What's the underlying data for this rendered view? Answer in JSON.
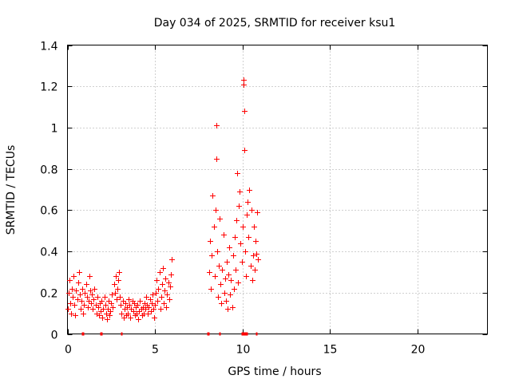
{
  "chart_data": {
    "type": "scatter",
    "title": "Day 034 of 2025, SRMTID for receiver ksu1",
    "xlabel": "GPS time / hours",
    "ylabel": "SRMTID / TECUs",
    "xlim": [
      0,
      24
    ],
    "ylim": [
      0,
      1.4
    ],
    "xticks": [
      0,
      5,
      10,
      15,
      20
    ],
    "xtick_labels": [
      "0",
      "5",
      "10",
      "15",
      "20"
    ],
    "yticks": [
      0,
      0.2,
      0.4,
      0.6,
      0.8,
      1.0,
      1.2,
      1.4
    ],
    "ytick_labels": [
      "0",
      "0.2",
      "0.4",
      "0.6",
      "0.8",
      "1",
      "1.2",
      "1.4"
    ],
    "grid": true,
    "marker": "+",
    "color": "#ff0000",
    "series": [
      {
        "name": "SRMTID",
        "points": [
          [
            0.0,
            0.12
          ],
          [
            0.05,
            0.2
          ],
          [
            0.1,
            0.26
          ],
          [
            0.15,
            0.15
          ],
          [
            0.2,
            0.1
          ],
          [
            0.25,
            0.22
          ],
          [
            0.3,
            0.18
          ],
          [
            0.35,
            0.28
          ],
          [
            0.4,
            0.14
          ],
          [
            0.45,
            0.09
          ],
          [
            0.5,
            0.21
          ],
          [
            0.55,
            0.17
          ],
          [
            0.6,
            0.25
          ],
          [
            0.65,
            0.3
          ],
          [
            0.7,
            0.19
          ],
          [
            0.75,
            0.12
          ],
          [
            0.8,
            0.16
          ],
          [
            0.85,
            0.22
          ],
          [
            0.9,
            0.1
          ],
          [
            0.95,
            0.14
          ],
          [
            1.0,
            0.2
          ],
          [
            1.05,
            0.24
          ],
          [
            1.1,
            0.18
          ],
          [
            1.15,
            0.13
          ],
          [
            1.2,
            0.16
          ],
          [
            1.25,
            0.28
          ],
          [
            1.3,
            0.21
          ],
          [
            1.35,
            0.15
          ],
          [
            1.4,
            0.19
          ],
          [
            1.45,
            0.12
          ],
          [
            1.5,
            0.17
          ],
          [
            1.55,
            0.22
          ],
          [
            1.6,
            0.14
          ],
          [
            1.65,
            0.1
          ],
          [
            1.7,
            0.18
          ],
          [
            1.75,
            0.13
          ],
          [
            1.8,
            0.09
          ],
          [
            1.85,
            0.15
          ],
          [
            1.9,
            0.11
          ],
          [
            1.95,
            0.16
          ],
          [
            2.0,
            0.08
          ],
          [
            2.05,
            0.12
          ],
          [
            2.1,
            0.18
          ],
          [
            2.15,
            0.14
          ],
          [
            2.2,
            0.1
          ],
          [
            2.25,
            0.07
          ],
          [
            2.3,
            0.12
          ],
          [
            2.35,
            0.16
          ],
          [
            2.4,
            0.09
          ],
          [
            2.45,
            0.11
          ],
          [
            2.5,
            0.15
          ],
          [
            2.55,
            0.19
          ],
          [
            2.6,
            0.13
          ],
          [
            2.65,
            0.24
          ],
          [
            2.7,
            0.2
          ],
          [
            2.75,
            0.28
          ],
          [
            2.8,
            0.17
          ],
          [
            2.85,
            0.22
          ],
          [
            2.9,
            0.26
          ],
          [
            2.95,
            0.3
          ],
          [
            3.0,
            0.18
          ],
          [
            3.05,
            0.14
          ],
          [
            3.1,
            0.1
          ],
          [
            3.15,
            0.16
          ],
          [
            3.2,
            0.08
          ],
          [
            3.25,
            0.12
          ],
          [
            3.3,
            0.15
          ],
          [
            3.35,
            0.09
          ],
          [
            3.4,
            0.13
          ],
          [
            3.45,
            0.1
          ],
          [
            3.5,
            0.17
          ],
          [
            3.55,
            0.14
          ],
          [
            3.6,
            0.08
          ],
          [
            3.65,
            0.12
          ],
          [
            3.7,
            0.16
          ],
          [
            3.75,
            0.11
          ],
          [
            3.8,
            0.15
          ],
          [
            3.85,
            0.09
          ],
          [
            3.9,
            0.13
          ],
          [
            3.95,
            0.1
          ],
          [
            4.0,
            0.14
          ],
          [
            4.05,
            0.07
          ],
          [
            4.1,
            0.11
          ],
          [
            4.15,
            0.16
          ],
          [
            4.2,
            0.12
          ],
          [
            4.25,
            0.09
          ],
          [
            4.3,
            0.13
          ],
          [
            4.35,
            0.1
          ],
          [
            4.4,
            0.15
          ],
          [
            4.45,
            0.12
          ],
          [
            4.5,
            0.18
          ],
          [
            4.55,
            0.14
          ],
          [
            4.6,
            0.1
          ],
          [
            4.65,
            0.13
          ],
          [
            4.7,
            0.17
          ],
          [
            4.75,
            0.11
          ],
          [
            4.8,
            0.15
          ],
          [
            4.85,
            0.19
          ],
          [
            4.9,
            0.12
          ],
          [
            4.95,
            0.08
          ],
          [
            5.0,
            0.14
          ],
          [
            5.05,
            0.2
          ],
          [
            5.1,
            0.26
          ],
          [
            5.15,
            0.16
          ],
          [
            5.2,
            0.22
          ],
          [
            5.25,
            0.3
          ],
          [
            5.3,
            0.12
          ],
          [
            5.35,
            0.18
          ],
          [
            5.4,
            0.24
          ],
          [
            5.45,
            0.32
          ],
          [
            5.5,
            0.15
          ],
          [
            5.55,
            0.21
          ],
          [
            5.6,
            0.27
          ],
          [
            5.65,
            0.13
          ],
          [
            5.7,
            0.19
          ],
          [
            5.75,
            0.25
          ],
          [
            5.8,
            0.17
          ],
          [
            5.85,
            0.23
          ],
          [
            5.9,
            0.29
          ],
          [
            5.95,
            0.36
          ],
          [
            8.1,
            0.3
          ],
          [
            8.15,
            0.45
          ],
          [
            8.2,
            0.22
          ],
          [
            8.25,
            0.38
          ],
          [
            8.3,
            0.67
          ],
          [
            8.35,
            0.52
          ],
          [
            8.4,
            0.28
          ],
          [
            8.45,
            0.6
          ],
          [
            8.5,
            1.01
          ],
          [
            8.52,
            0.85
          ],
          [
            8.55,
            0.4
          ],
          [
            8.6,
            0.18
          ],
          [
            8.65,
            0.33
          ],
          [
            8.7,
            0.56
          ],
          [
            8.75,
            0.24
          ],
          [
            8.8,
            0.15
          ],
          [
            8.85,
            0.31
          ],
          [
            8.9,
            0.48
          ],
          [
            8.95,
            0.2
          ],
          [
            9.0,
            0.27
          ],
          [
            9.05,
            0.16
          ],
          [
            9.1,
            0.35
          ],
          [
            9.15,
            0.12
          ],
          [
            9.2,
            0.29
          ],
          [
            9.25,
            0.42
          ],
          [
            9.3,
            0.19
          ],
          [
            9.35,
            0.26
          ],
          [
            9.4,
            0.13
          ],
          [
            9.45,
            0.38
          ],
          [
            9.5,
            0.22
          ],
          [
            9.55,
            0.47
          ],
          [
            9.6,
            0.31
          ],
          [
            9.65,
            0.55
          ],
          [
            9.7,
            0.78
          ],
          [
            9.75,
            0.25
          ],
          [
            9.8,
            0.62
          ],
          [
            9.85,
            0.69
          ],
          [
            9.9,
            0.44
          ],
          [
            9.95,
            0.35
          ],
          [
            10.0,
            0.52
          ],
          [
            10.05,
            1.21
          ],
          [
            10.08,
            1.23
          ],
          [
            10.1,
            1.08
          ],
          [
            10.12,
            0.89
          ],
          [
            10.15,
            0.4
          ],
          [
            10.2,
            0.28
          ],
          [
            10.25,
            0.58
          ],
          [
            10.3,
            0.64
          ],
          [
            10.35,
            0.47
          ],
          [
            10.4,
            0.7
          ],
          [
            10.45,
            0.33
          ],
          [
            10.5,
            0.6
          ],
          [
            10.55,
            0.26
          ],
          [
            10.6,
            0.38
          ],
          [
            10.65,
            0.52
          ],
          [
            10.7,
            0.31
          ],
          [
            10.75,
            0.45
          ],
          [
            10.8,
            0.39
          ],
          [
            10.85,
            0.59
          ],
          [
            10.9,
            0.36
          ]
        ]
      }
    ],
    "baseline_markers_x": [
      0.85,
      0.9,
      1.9,
      1.95,
      3.1,
      8.0,
      8.05,
      8.7,
      9.95,
      10.0,
      10.05,
      10.15,
      10.25,
      10.8
    ]
  }
}
